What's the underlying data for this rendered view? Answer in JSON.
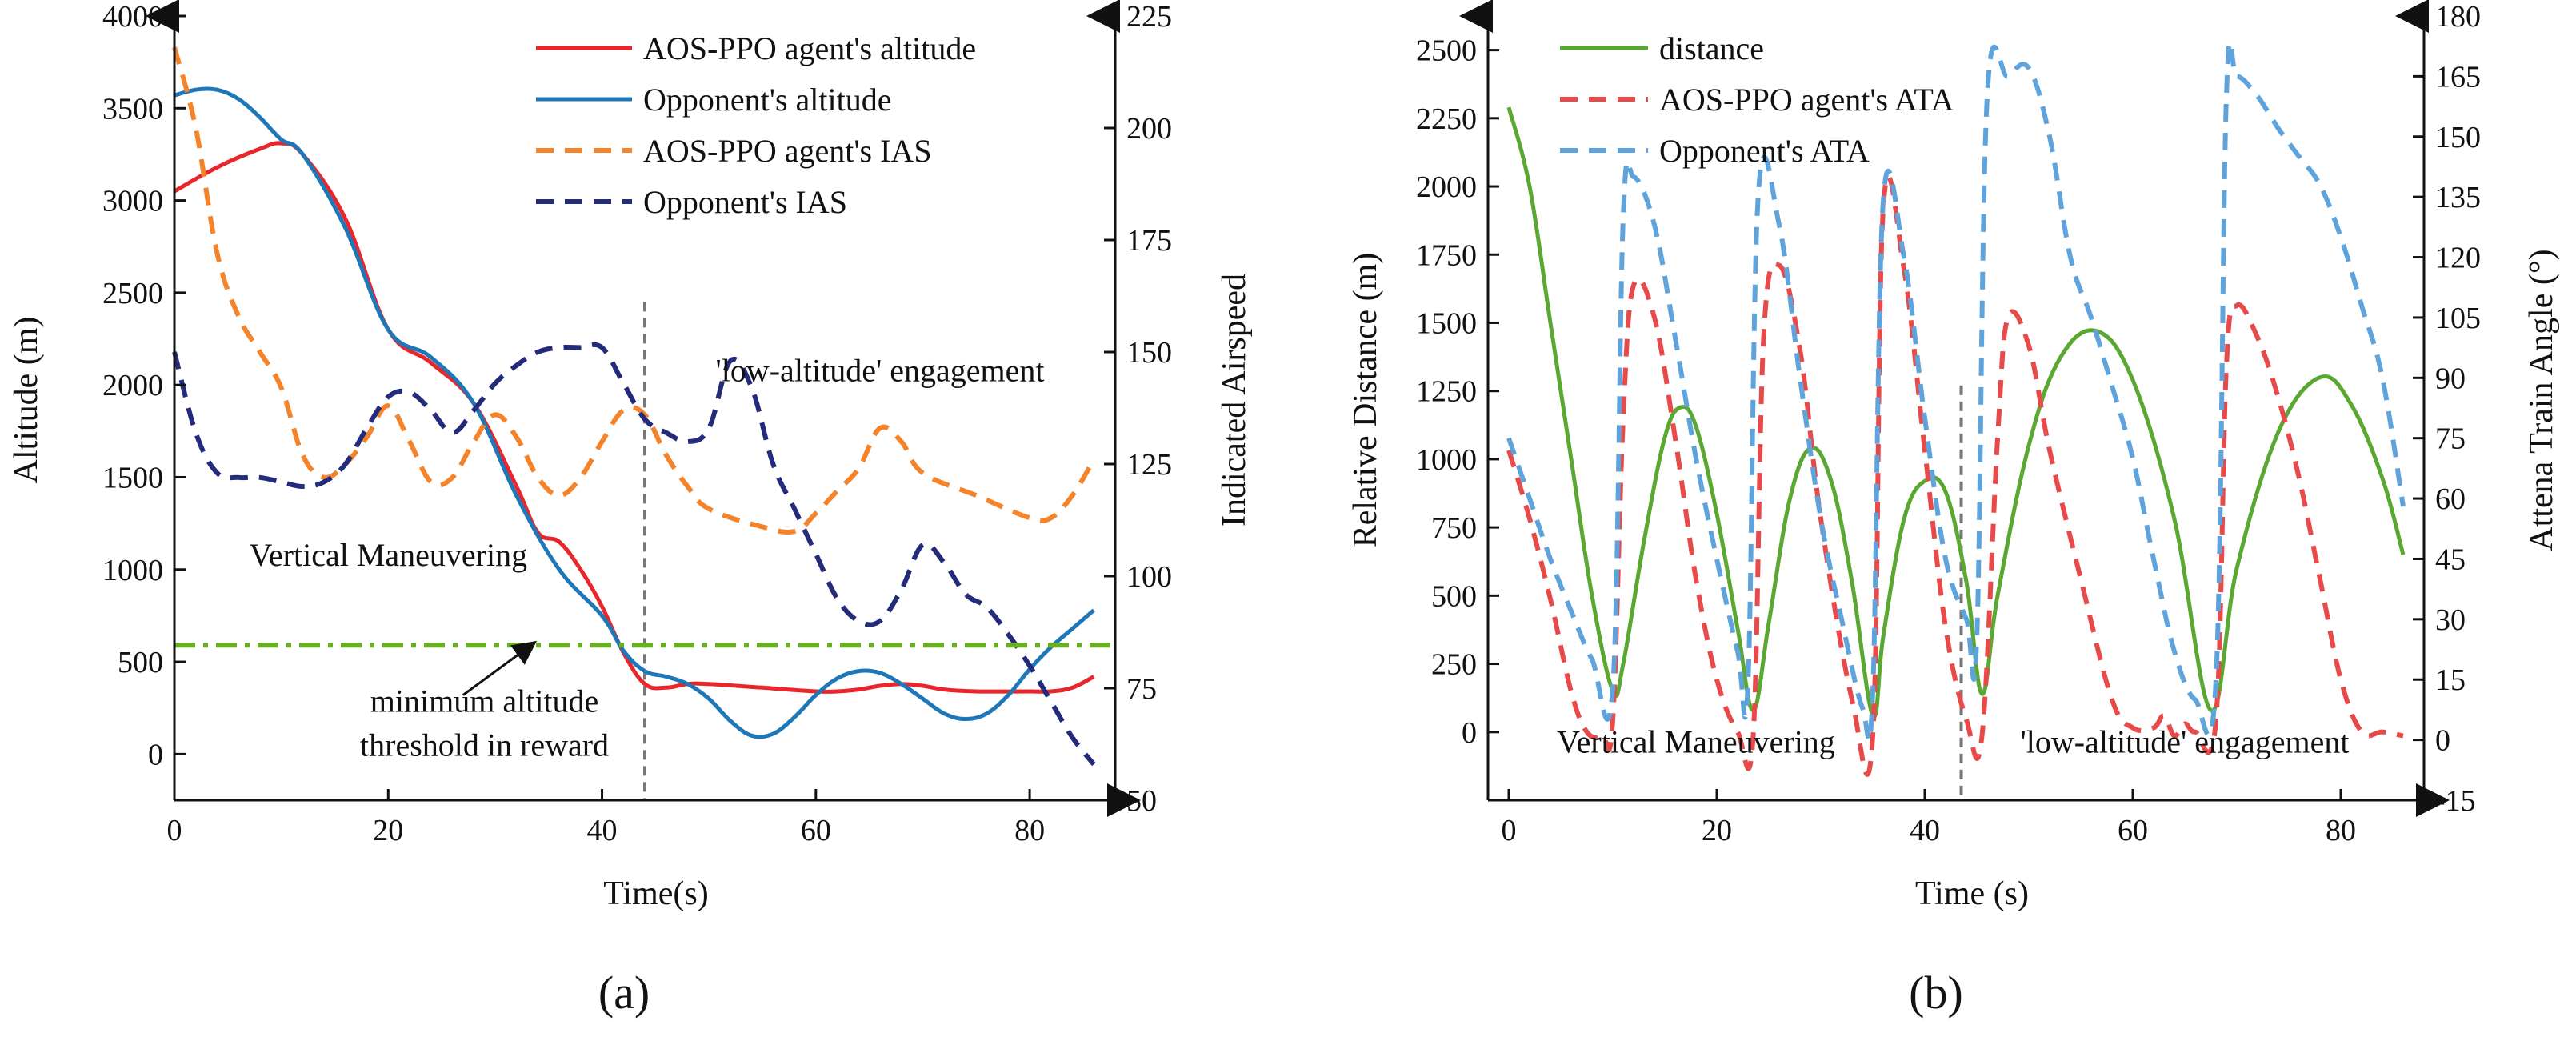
{
  "chart_data": [
    {
      "panel_label": "(a)",
      "type": "line",
      "title": "",
      "xlabel": "Time(s)",
      "ylabel": "Altitude (m)",
      "y2label": "Indicated Airspeed",
      "xlim": [
        0,
        88
      ],
      "ylim": [
        -250,
        4000
      ],
      "y2lim": [
        50,
        225
      ],
      "xticks": [
        0,
        20,
        40,
        60,
        80
      ],
      "yticks": [
        0,
        500,
        1000,
        1500,
        2000,
        2500,
        3000,
        3500,
        4000
      ],
      "y2ticks": [
        50,
        75,
        100,
        125,
        150,
        175,
        200,
        225
      ],
      "legend": {
        "position": "top-right"
      },
      "series": [
        {
          "name": "AOS-PPO agent's altitude",
          "axis": "left",
          "style": "solid",
          "color": "#e8262b",
          "x": [
            0,
            4,
            8,
            10,
            12,
            16,
            20,
            24,
            28,
            32,
            34,
            36,
            38,
            40,
            42,
            44,
            46,
            48,
            50,
            55,
            60,
            62,
            64,
            66,
            68,
            70,
            72,
            75,
            80,
            82,
            84,
            86
          ],
          "y": [
            3050,
            3180,
            3280,
            3310,
            3250,
            2900,
            2300,
            2120,
            1900,
            1450,
            1200,
            1150,
            1000,
            800,
            550,
            380,
            360,
            380,
            380,
            360,
            340,
            340,
            350,
            370,
            380,
            370,
            350,
            340,
            340,
            340,
            360,
            420
          ]
        },
        {
          "name": "Opponent's altitude",
          "axis": "left",
          "style": "solid",
          "color": "#1e78b8",
          "x": [
            0,
            2,
            4,
            6,
            8,
            10,
            12,
            16,
            20,
            24,
            28,
            32,
            36,
            40,
            42,
            44,
            46,
            48,
            50,
            52,
            54,
            56,
            58,
            60,
            62,
            64,
            66,
            68,
            70,
            72,
            74,
            76,
            78,
            80,
            82,
            84,
            86
          ],
          "y": [
            3570,
            3600,
            3600,
            3550,
            3450,
            3330,
            3250,
            2850,
            2300,
            2150,
            1900,
            1400,
            1000,
            750,
            560,
            450,
            420,
            380,
            300,
            180,
            100,
            110,
            200,
            320,
            410,
            450,
            440,
            380,
            300,
            220,
            190,
            220,
            320,
            460,
            580,
            680,
            780
          ]
        },
        {
          "name": "AOS-PPO agent's IAS",
          "axis": "right",
          "style": "dashed",
          "color": "#f4832a",
          "x": [
            0,
            2,
            4,
            6,
            8,
            10,
            12,
            14,
            16,
            18,
            20,
            22,
            24,
            26,
            28,
            30,
            32,
            34,
            36,
            38,
            40,
            42,
            44,
            46,
            48,
            50,
            55,
            58,
            60,
            62,
            64,
            66,
            68,
            70,
            75,
            80,
            82,
            84,
            86
          ],
          "y": [
            218,
            200,
            172,
            158,
            150,
            142,
            127,
            122,
            125,
            131,
            138,
            130,
            121,
            122,
            130,
            136,
            131,
            122,
            118,
            122,
            130,
            137,
            136,
            127,
            120,
            115,
            111,
            110,
            114,
            119,
            124,
            133,
            130,
            123,
            118,
            113,
            113,
            118,
            126
          ]
        },
        {
          "name": "Opponent's IAS",
          "axis": "right",
          "style": "dashed",
          "color": "#232b7a",
          "x": [
            0,
            2,
            4,
            6,
            8,
            10,
            12,
            14,
            16,
            18,
            20,
            22,
            24,
            26,
            28,
            30,
            32,
            34,
            36,
            38,
            40,
            42,
            44,
            46,
            48,
            50,
            52,
            54,
            56,
            58,
            60,
            62,
            64,
            66,
            68,
            70,
            72,
            74,
            76,
            78,
            80,
            82,
            84,
            86
          ],
          "y": [
            150,
            132,
            123,
            122,
            122,
            121,
            120,
            121,
            125,
            133,
            140,
            141,
            137,
            132,
            137,
            143,
            147,
            150,
            151,
            151,
            151,
            143,
            135,
            132,
            130,
            133,
            148,
            142,
            125,
            115,
            105,
            95,
            90,
            90,
            97,
            107,
            103,
            96,
            93,
            87,
            80,
            72,
            64,
            58
          ]
        },
        {
          "name": "minimum altitude threshold in reward",
          "axis": "left",
          "style": "dashdot",
          "color": "#6ab023",
          "x": [
            0,
            88
          ],
          "y": [
            590,
            590
          ]
        }
      ],
      "annotations": [
        {
          "text": "Vertical Maneuvering",
          "x": 20,
          "y": 1020
        },
        {
          "text": "'low-altitude' engagement",
          "x": 66,
          "y": 2020
        },
        {
          "text": "minimum altitude",
          "x": 29,
          "y": 230
        },
        {
          "text": "threshold in reward",
          "x": 29,
          "y": -10
        }
      ],
      "divider_x": 44
    },
    {
      "panel_label": "(b)",
      "type": "line",
      "title": "",
      "xlabel": "Time (s)",
      "ylabel": "Relative Distance (m)",
      "y2label": "Attena Train Angle (°)",
      "xlim": [
        -2,
        88
      ],
      "ylim": [
        -250,
        2625
      ],
      "y2lim": [
        -15,
        180
      ],
      "xticks": [
        0,
        20,
        40,
        60,
        80
      ],
      "yticks": [
        0,
        250,
        500,
        750,
        1000,
        1250,
        1500,
        1750,
        2000,
        2250,
        2500
      ],
      "y2ticks": [
        -15,
        0,
        15,
        30,
        45,
        60,
        75,
        90,
        105,
        120,
        135,
        150,
        165,
        180
      ],
      "legend": {
        "position": "top-left"
      },
      "series": [
        {
          "name": "distance",
          "axis": "left",
          "style": "solid",
          "color": "#5aa832",
          "x": [
            0,
            2,
            4,
            6,
            8,
            10,
            11,
            13,
            15,
            16.5,
            18,
            20,
            22,
            23.5,
            25,
            27,
            29,
            31,
            33,
            35,
            36,
            38,
            40,
            42,
            44,
            45.5,
            47,
            50,
            53,
            56.5,
            60,
            64,
            67.5,
            70,
            74,
            78,
            81,
            84,
            86
          ],
          "y": [
            2290,
            2000,
            1500,
            1000,
            500,
            150,
            250,
            700,
            1080,
            1190,
            1120,
            800,
            380,
            80,
            400,
            850,
            1040,
            920,
            550,
            60,
            350,
            780,
            920,
            880,
            550,
            140,
            500,
            1050,
            1370,
            1470,
            1290,
            780,
            80,
            600,
            1100,
            1300,
            1200,
            930,
            650
          ]
        },
        {
          "name": "AOS-PPO agent's ATA",
          "axis": "right",
          "style": "dashed",
          "color": "#e84a4a",
          "x": [
            0,
            2,
            4,
            6,
            7.5,
            9,
            10,
            11,
            12,
            14,
            16,
            18,
            20,
            22,
            23.5,
            24.5,
            26,
            28,
            30,
            33,
            35,
            36,
            38,
            40,
            42,
            44,
            45.5,
            47,
            48,
            50,
            52,
            55,
            58,
            60,
            62,
            63,
            64,
            65,
            66,
            68,
            69,
            70,
            72,
            74,
            76,
            78,
            80,
            82,
            84,
            86
          ],
          "y": [
            72,
            55,
            35,
            12,
            2,
            1,
            5,
            80,
            113,
            105,
            75,
            40,
            15,
            2,
            1,
            100,
            118,
            97,
            55,
            10,
            1,
            132,
            117,
            72,
            28,
            5,
            1,
            75,
            105,
            98,
            72,
            40,
            10,
            3,
            3,
            6,
            1,
            4,
            2,
            5,
            93,
            108,
            100,
            85,
            65,
            40,
            15,
            2,
            2,
            1
          ]
        },
        {
          "name": "Opponent's ATA",
          "axis": "right",
          "style": "dashed",
          "color": "#5fa3dc",
          "x": [
            0,
            2,
            4,
            6,
            8,
            10,
            11,
            12,
            14,
            16,
            18,
            20,
            22,
            23,
            24,
            26,
            28,
            30,
            32,
            34,
            35,
            36,
            38,
            40,
            42,
            44,
            45,
            46,
            48,
            50,
            52,
            54,
            56,
            58,
            60,
            62,
            64,
            66,
            68,
            69,
            70,
            72,
            74,
            76,
            78,
            80,
            82,
            84,
            86
          ],
          "y": [
            75,
            60,
            45,
            32,
            20,
            13,
            130,
            140,
            128,
            100,
            70,
            45,
            22,
            14,
            136,
            128,
            90,
            55,
            30,
            8,
            12,
            134,
            120,
            80,
            45,
            30,
            25,
            160,
            165,
            167,
            150,
            120,
            105,
            88,
            70,
            45,
            22,
            10,
            15,
            160,
            165,
            160,
            152,
            145,
            138,
            125,
            108,
            90,
            58
          ]
        }
      ],
      "annotations": [
        {
          "text": "Vertical Maneuvering",
          "x": 18,
          "y": -75
        },
        {
          "text": "'low-altitude' engagement",
          "x": 65,
          "y": -75
        }
      ],
      "divider_x": 43.5
    }
  ]
}
